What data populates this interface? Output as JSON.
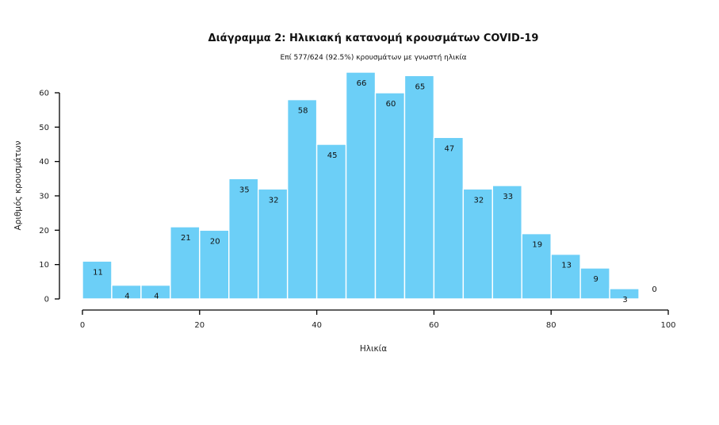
{
  "chart_data": {
    "type": "bar",
    "title": "Διάγραμμα 2: Ηλικιακή κατανομή κρουσμάτων COVID-19",
    "subtitle": "Επί 577/624 (92.5%) κρουσμάτων με γνωστή ηλικία",
    "xlabel": "Ηλικία",
    "ylabel": "Αριθμός κρουσμάτων",
    "bin_width": 5,
    "bin_starts": [
      0,
      5,
      10,
      15,
      20,
      25,
      30,
      35,
      40,
      45,
      50,
      55,
      60,
      65,
      70,
      75,
      80,
      85,
      90,
      95
    ],
    "values": [
      11,
      4,
      4,
      21,
      20,
      35,
      32,
      58,
      45,
      66,
      60,
      65,
      47,
      32,
      33,
      19,
      13,
      9,
      3,
      0
    ],
    "xlim": [
      0,
      100
    ],
    "ylim": [
      0,
      60
    ],
    "x_ticks": [
      0,
      20,
      40,
      60,
      80,
      100
    ],
    "y_ticks": [
      0,
      10,
      20,
      30,
      40,
      50,
      60
    ],
    "grid": false,
    "bar_color": "#6ccff7",
    "data_labels": true
  }
}
